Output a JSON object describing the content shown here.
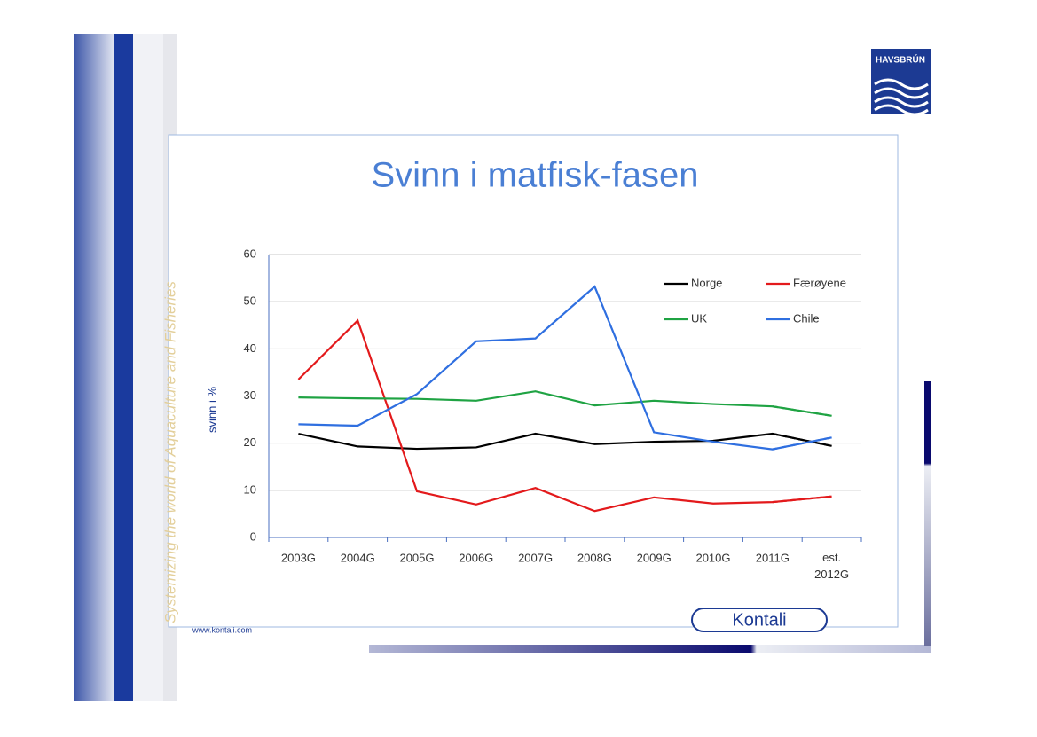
{
  "slide": {
    "logo": "HAVSBRÚN",
    "tagline": "Systemizing the world of Aquaculture and Fisheries",
    "website": "www.kontali.com",
    "brand": "Kontali"
  },
  "chart_data": {
    "type": "line",
    "title": "Svinn i matfisk-fasen",
    "y_label": "svinn i %",
    "categories": [
      "2003G",
      "2004G",
      "2005G",
      "2006G",
      "2007G",
      "2008G",
      "2009G",
      "2010G",
      "2011G",
      "est. 2012G"
    ],
    "series": [
      {
        "name": "Norge",
        "color": "#000000",
        "values": [
          22,
          19.3,
          18.8,
          19.1,
          22,
          19.8,
          20.3,
          20.5,
          22,
          19.4
        ]
      },
      {
        "name": "Færøyene",
        "color": "#e31a1c",
        "values": [
          33.5,
          46,
          9.8,
          7,
          10.5,
          5.6,
          8.5,
          7.2,
          7.5,
          8.7
        ]
      },
      {
        "name": "UK",
        "color": "#1fa343",
        "values": [
          29.7,
          29.5,
          29.4,
          29,
          31,
          28,
          29,
          28.3,
          27.8,
          25.8
        ]
      },
      {
        "name": "Chile",
        "color": "#2f6fe0",
        "values": [
          24,
          23.7,
          30.4,
          41.6,
          42.2,
          53.2,
          22.3,
          20.3,
          18.7,
          21.2
        ]
      }
    ],
    "ylim": [
      0,
      60
    ],
    "yticks": [
      0,
      10,
      20,
      30,
      40,
      50,
      60
    ],
    "grid": true,
    "dashed_last_segment": true
  }
}
